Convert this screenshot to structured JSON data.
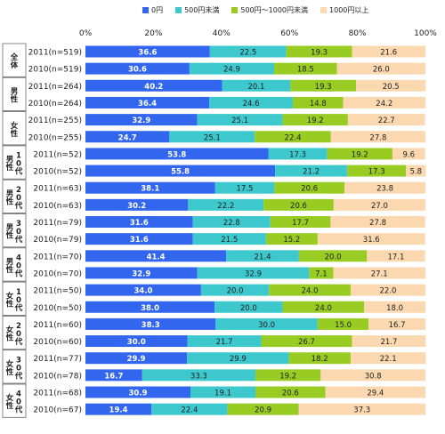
{
  "chart_data": {
    "type": "bar",
    "orientation": "horizontal",
    "stacked": "percent",
    "title": "",
    "xlabel": "",
    "ylabel": "",
    "xlim": [
      0,
      100
    ],
    "x_ticks": [
      "0%",
      "20%",
      "40%",
      "60%",
      "80%",
      "100%"
    ],
    "legend_position": "top",
    "series": [
      {
        "name": "0円",
        "color": "#3366ee"
      },
      {
        "name": "500円未満",
        "color": "#3cc8cc"
      },
      {
        "name": "500円～1000円未満",
        "color": "#99cc22"
      },
      {
        "name": "1000円以上",
        "color": "#fbd8b0"
      }
    ],
    "groups": [
      {
        "label": "全体",
        "rows": [
          {
            "label": "2011(n=519)",
            "values": [
              36.6,
              22.5,
              19.3,
              21.6
            ]
          },
          {
            "label": "2010(n=519)",
            "values": [
              30.6,
              24.9,
              18.5,
              26.0
            ]
          }
        ]
      },
      {
        "label": "男性",
        "rows": [
          {
            "label": "2011(n=264)",
            "values": [
              40.2,
              20.1,
              19.3,
              20.5
            ]
          },
          {
            "label": "2010(n=264)",
            "values": [
              36.4,
              24.6,
              14.8,
              24.2
            ]
          }
        ]
      },
      {
        "label": "女性",
        "rows": [
          {
            "label": "2011(n=255)",
            "values": [
              32.9,
              25.1,
              19.2,
              22.7
            ]
          },
          {
            "label": "2010(n=255)",
            "values": [
              24.7,
              25.1,
              22.4,
              27.8
            ]
          }
        ]
      },
      {
        "label": "男性 10代",
        "rows": [
          {
            "label": "2011(n=52)",
            "values": [
              53.8,
              17.3,
              19.2,
              9.6
            ]
          },
          {
            "label": "2010(n=52)",
            "values": [
              55.8,
              21.2,
              17.3,
              5.8
            ]
          }
        ]
      },
      {
        "label": "男性 20代",
        "rows": [
          {
            "label": "2011(n=63)",
            "values": [
              38.1,
              17.5,
              20.6,
              23.8
            ]
          },
          {
            "label": "2010(n=63)",
            "values": [
              30.2,
              22.2,
              20.6,
              27.0
            ]
          }
        ]
      },
      {
        "label": "男性 30代",
        "rows": [
          {
            "label": "2011(n=79)",
            "values": [
              31.6,
              22.8,
              17.7,
              27.8
            ]
          },
          {
            "label": "2010(n=79)",
            "values": [
              31.6,
              21.5,
              15.2,
              31.6
            ]
          }
        ]
      },
      {
        "label": "男性 40代",
        "rows": [
          {
            "label": "2011(n=70)",
            "values": [
              41.4,
              21.4,
              20.0,
              17.1
            ]
          },
          {
            "label": "2010(n=70)",
            "values": [
              32.9,
              32.9,
              7.1,
              27.1
            ]
          }
        ]
      },
      {
        "label": "女性 10代",
        "rows": [
          {
            "label": "2011(n=50)",
            "values": [
              34.0,
              20.0,
              24.0,
              22.0
            ]
          },
          {
            "label": "2010(n=50)",
            "values": [
              38.0,
              20.0,
              24.0,
              18.0
            ]
          }
        ]
      },
      {
        "label": "女性 20代",
        "rows": [
          {
            "label": "2011(n=60)",
            "values": [
              38.3,
              30.0,
              15.0,
              16.7
            ]
          },
          {
            "label": "2010(n=60)",
            "values": [
              30.0,
              21.7,
              26.7,
              21.7
            ]
          }
        ]
      },
      {
        "label": "女性 30代",
        "rows": [
          {
            "label": "2011(n=77)",
            "values": [
              29.9,
              29.9,
              18.2,
              22.1
            ]
          },
          {
            "label": "2010(n=78)",
            "values": [
              16.7,
              33.3,
              19.2,
              30.8
            ]
          }
        ]
      },
      {
        "label": "女性 40代",
        "rows": [
          {
            "label": "2011(n=68)",
            "values": [
              30.9,
              19.1,
              20.6,
              29.4
            ]
          },
          {
            "label": "2010(n=67)",
            "values": [
              19.4,
              22.4,
              20.9,
              37.3
            ]
          }
        ]
      }
    ]
  }
}
